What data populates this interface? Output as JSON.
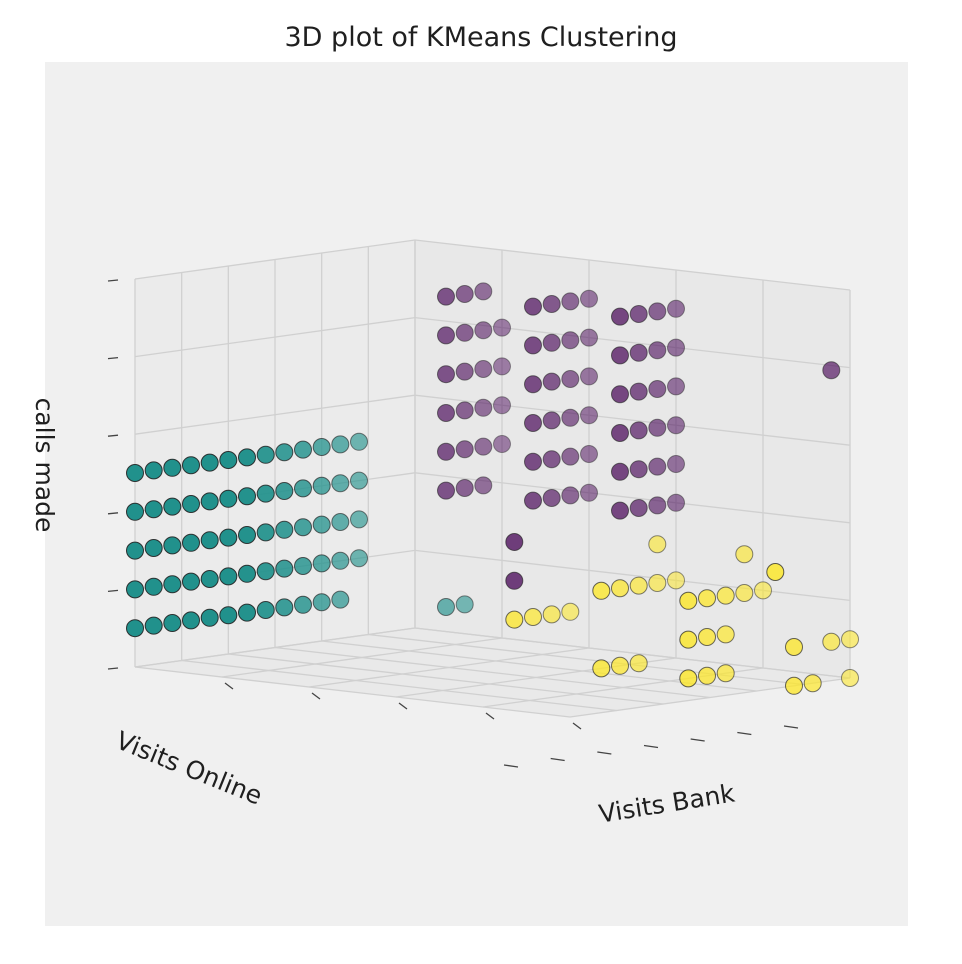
{
  "chart_data": {
    "type": "scatter",
    "projection": "3d",
    "title": "3D plot of KMeans Clustering",
    "xlabel": "Visits Bank",
    "ylabel": "Visits Online",
    "zlabel": "calls made",
    "grid": true,
    "tick_labels_visible": false,
    "marker_edge_color": "#222222",
    "cluster_colors": {
      "cluster_0": "#440154",
      "cluster_1": "#21918c",
      "cluster_2": "#fde725"
    },
    "xlim": [
      0,
      5
    ],
    "ylim": [
      0,
      15
    ],
    "zlim": [
      0,
      10
    ],
    "series": [
      {
        "color": "#21918c",
        "points": [
          [
            0,
            0,
            1
          ],
          [
            0,
            0,
            2
          ],
          [
            0,
            0,
            3
          ],
          [
            0,
            0,
            4
          ],
          [
            0,
            0,
            5
          ],
          [
            0,
            1,
            1
          ],
          [
            0,
            1,
            2
          ],
          [
            0,
            1,
            3
          ],
          [
            0,
            1,
            4
          ],
          [
            0,
            1,
            5
          ],
          [
            0,
            2,
            1
          ],
          [
            0,
            2,
            2
          ],
          [
            0,
            2,
            3
          ],
          [
            0,
            2,
            4
          ],
          [
            0,
            2,
            5
          ],
          [
            0,
            3,
            1
          ],
          [
            0,
            3,
            2
          ],
          [
            0,
            3,
            3
          ],
          [
            0,
            3,
            4
          ],
          [
            0,
            3,
            5
          ],
          [
            0,
            4,
            1
          ],
          [
            0,
            4,
            2
          ],
          [
            0,
            4,
            3
          ],
          [
            0,
            4,
            4
          ],
          [
            0,
            4,
            5
          ],
          [
            0,
            5,
            1
          ],
          [
            0,
            5,
            2
          ],
          [
            0,
            5,
            3
          ],
          [
            0,
            5,
            4
          ],
          [
            0,
            5,
            5
          ],
          [
            0,
            6,
            1
          ],
          [
            0,
            6,
            2
          ],
          [
            0,
            6,
            3
          ],
          [
            0,
            6,
            4
          ],
          [
            0,
            6,
            5
          ],
          [
            0,
            7,
            1
          ],
          [
            0,
            7,
            2
          ],
          [
            0,
            7,
            3
          ],
          [
            0,
            7,
            4
          ],
          [
            0,
            7,
            5
          ],
          [
            0,
            8,
            1
          ],
          [
            0,
            8,
            2
          ],
          [
            0,
            8,
            3
          ],
          [
            0,
            8,
            4
          ],
          [
            0,
            8,
            5
          ],
          [
            0,
            9,
            1
          ],
          [
            0,
            9,
            2
          ],
          [
            0,
            9,
            3
          ],
          [
            0,
            9,
            4
          ],
          [
            0,
            9,
            5
          ],
          [
            0,
            10,
            1
          ],
          [
            0,
            10,
            2
          ],
          [
            0,
            10,
            3
          ],
          [
            0,
            10,
            4
          ],
          [
            0,
            10,
            5
          ],
          [
            0,
            11,
            1
          ],
          [
            0,
            11,
            2
          ],
          [
            0,
            11,
            3
          ],
          [
            0,
            11,
            4
          ],
          [
            0,
            11,
            5
          ],
          [
            0,
            12,
            2
          ],
          [
            0,
            12,
            3
          ],
          [
            0,
            12,
            4
          ],
          [
            0,
            12,
            5
          ],
          [
            1,
            12,
            1
          ],
          [
            1,
            13,
            1
          ]
        ]
      },
      {
        "color": "#440154",
        "points": [
          [
            1,
            12,
            4
          ],
          [
            1,
            12,
            5
          ],
          [
            1,
            12,
            6
          ],
          [
            1,
            12,
            7
          ],
          [
            1,
            12,
            8
          ],
          [
            1,
            12,
            9
          ],
          [
            1,
            13,
            4
          ],
          [
            1,
            13,
            5
          ],
          [
            1,
            13,
            6
          ],
          [
            1,
            13,
            7
          ],
          [
            1,
            13,
            8
          ],
          [
            1,
            13,
            9
          ],
          [
            1,
            14,
            4
          ],
          [
            1,
            14,
            5
          ],
          [
            1,
            14,
            6
          ],
          [
            1,
            14,
            7
          ],
          [
            1,
            14,
            8
          ],
          [
            1,
            14,
            9
          ],
          [
            1,
            15,
            5
          ],
          [
            1,
            15,
            6
          ],
          [
            1,
            15,
            7
          ],
          [
            1,
            15,
            8
          ],
          [
            2,
            12,
            4
          ],
          [
            2,
            12,
            5
          ],
          [
            2,
            12,
            6
          ],
          [
            2,
            12,
            7
          ],
          [
            2,
            12,
            8
          ],
          [
            2,
            12,
            9
          ],
          [
            2,
            13,
            4
          ],
          [
            2,
            13,
            5
          ],
          [
            2,
            13,
            6
          ],
          [
            2,
            13,
            7
          ],
          [
            2,
            13,
            8
          ],
          [
            2,
            13,
            9
          ],
          [
            2,
            14,
            4
          ],
          [
            2,
            14,
            5
          ],
          [
            2,
            14,
            6
          ],
          [
            2,
            14,
            7
          ],
          [
            2,
            14,
            8
          ],
          [
            2,
            14,
            9
          ],
          [
            2,
            15,
            4
          ],
          [
            2,
            15,
            5
          ],
          [
            2,
            15,
            6
          ],
          [
            2,
            15,
            7
          ],
          [
            2,
            15,
            8
          ],
          [
            2,
            15,
            9
          ],
          [
            3,
            12,
            4
          ],
          [
            3,
            12,
            5
          ],
          [
            3,
            12,
            6
          ],
          [
            3,
            12,
            7
          ],
          [
            3,
            12,
            8
          ],
          [
            3,
            12,
            9
          ],
          [
            3,
            13,
            4
          ],
          [
            3,
            13,
            5
          ],
          [
            3,
            13,
            6
          ],
          [
            3,
            13,
            7
          ],
          [
            3,
            13,
            8
          ],
          [
            3,
            13,
            9
          ],
          [
            3,
            14,
            4
          ],
          [
            3,
            14,
            5
          ],
          [
            3,
            14,
            6
          ],
          [
            3,
            14,
            7
          ],
          [
            3,
            14,
            8
          ],
          [
            3,
            14,
            9
          ],
          [
            3,
            15,
            4
          ],
          [
            3,
            15,
            5
          ],
          [
            3,
            15,
            6
          ],
          [
            3,
            15,
            7
          ],
          [
            3,
            15,
            8
          ],
          [
            3,
            15,
            9
          ],
          [
            5,
            14,
            8
          ],
          [
            2,
            11,
            3
          ],
          [
            2,
            11,
            2
          ]
        ]
      },
      {
        "color": "#fde725",
        "points": [
          [
            2,
            11,
            1
          ],
          [
            2,
            12,
            1
          ],
          [
            2,
            13,
            1
          ],
          [
            2,
            14,
            1
          ],
          [
            3,
            11,
            2
          ],
          [
            3,
            12,
            2
          ],
          [
            3,
            13,
            2
          ],
          [
            3,
            14,
            2
          ],
          [
            3,
            15,
            2
          ],
          [
            3,
            11,
            0
          ],
          [
            3,
            12,
            0
          ],
          [
            3,
            13,
            0
          ],
          [
            4,
            11,
            2
          ],
          [
            4,
            12,
            2
          ],
          [
            4,
            13,
            2
          ],
          [
            4,
            14,
            2
          ],
          [
            4,
            15,
            2
          ],
          [
            4,
            11,
            1
          ],
          [
            4,
            12,
            1
          ],
          [
            4,
            13,
            1
          ],
          [
            4,
            11,
            0
          ],
          [
            4,
            12,
            0
          ],
          [
            4,
            13,
            0
          ],
          [
            5,
            11,
            3
          ],
          [
            5,
            12,
            1
          ],
          [
            5,
            12,
            0
          ],
          [
            5,
            13,
            0
          ],
          [
            5,
            14,
            1
          ],
          [
            5,
            15,
            0
          ],
          [
            5,
            15,
            1
          ],
          [
            3,
            14,
            3
          ],
          [
            4,
            14,
            3
          ]
        ]
      }
    ]
  }
}
